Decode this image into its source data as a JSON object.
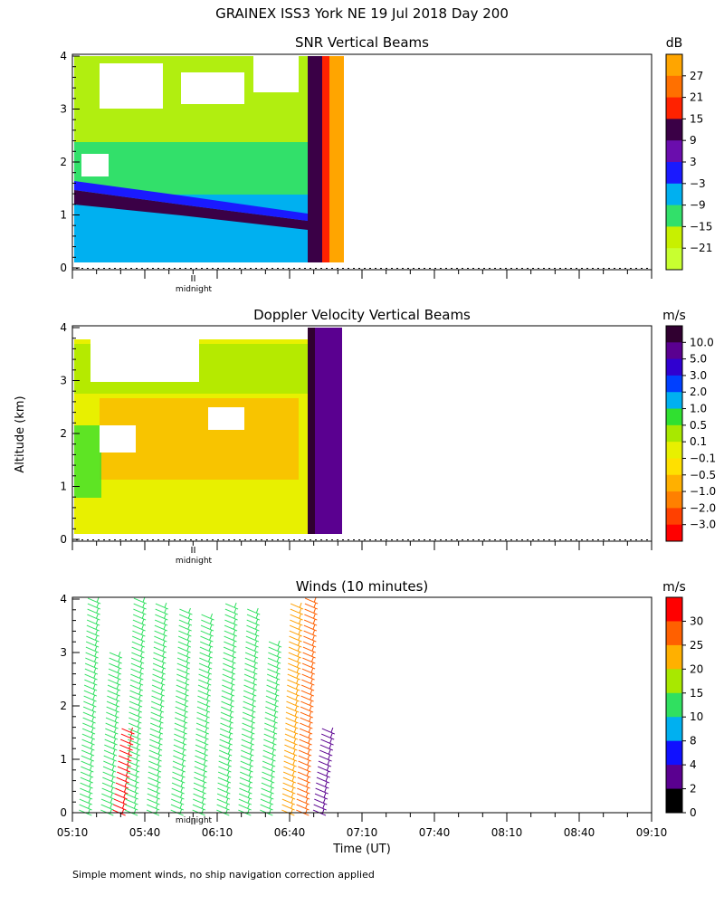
{
  "title": "GRAINEX ISS3 York NE  19 Jul 2018 Day 200",
  "ylabel": "Altitude (km)",
  "xlabel": "Time (UT)",
  "footnote": "Simple moment winds, no ship navigation correction applied",
  "midnight_label": "midnight",
  "chart_data": [
    {
      "type": "heatmap",
      "title": "SNR Vertical Beams",
      "unit": "dB",
      "ylim": [
        0,
        4
      ],
      "yticks": [
        "0",
        "1",
        "2",
        "3",
        "4"
      ],
      "colorbar": {
        "labels": [
          "27",
          "21",
          "15",
          "9",
          "3",
          "−3",
          "−9",
          "−15",
          "−21"
        ],
        "colors": [
          "#ffa500",
          "#ff7000",
          "#ff2200",
          "#3a0046",
          "#6a0dad",
          "#1a1aff",
          "#00b0f0",
          "#32e06a",
          "#c8f000",
          "#c8ff30"
        ]
      }
    },
    {
      "type": "heatmap",
      "title": "Doppler Velocity Vertical Beams",
      "unit": "m/s",
      "ylim": [
        0,
        4
      ],
      "yticks": [
        "0",
        "1",
        "2",
        "3",
        "4"
      ],
      "colorbar": {
        "labels": [
          "10.0",
          "5.0",
          "3.0",
          "2.0",
          "1.0",
          "0.5",
          "0.1",
          "−0.1",
          "−0.5",
          "−1.0",
          "−2.0",
          "−3.0"
        ],
        "colors": [
          "#300030",
          "#5a0090",
          "#3000d0",
          "#0040ff",
          "#00b0f0",
          "#30e030",
          "#a8e800",
          "#e8f000",
          "#ffe000",
          "#ffb000",
          "#ff8000",
          "#ff4000",
          "#ff0000"
        ]
      }
    },
    {
      "type": "scatter",
      "title": "Winds (10 minutes)",
      "unit": "m/s",
      "ylim": [
        0,
        4
      ],
      "yticks": [
        "0",
        "1",
        "2",
        "3",
        "4"
      ],
      "xticks": [
        "05:10",
        "05:40",
        "06:10",
        "06:40",
        "07:10",
        "07:40",
        "08:10",
        "08:40",
        "09:10"
      ],
      "colorbar": {
        "labels": [
          "30",
          "25",
          "20",
          "15",
          "10",
          "8",
          "4",
          "2",
          "0"
        ],
        "colors": [
          "#ff0000",
          "#ff6000",
          "#ffb000",
          "#a8e800",
          "#30e060",
          "#00b0f0",
          "#1010ff",
          "#5a0090",
          "#000000"
        ]
      },
      "barb_columns": [
        {
          "x": "05:15",
          "top": 4.1,
          "color": "#30e060"
        },
        {
          "x": "05:24",
          "top": 3.1,
          "color": "#30e060"
        },
        {
          "x": "05:29",
          "top": 1.6,
          "color": "#ff0000"
        },
        {
          "x": "05:34",
          "top": 4.05,
          "color": "#30e060"
        },
        {
          "x": "05:43",
          "top": 3.95,
          "color": "#30e060"
        },
        {
          "x": "05:53",
          "top": 3.9,
          "color": "#30e060"
        },
        {
          "x": "06:02",
          "top": 3.75,
          "color": "#30e060"
        },
        {
          "x": "06:12",
          "top": 4.0,
          "color": "#30e060"
        },
        {
          "x": "06:21",
          "top": 3.85,
          "color": "#30e060"
        },
        {
          "x": "06:30",
          "top": 3.3,
          "color": "#30e060"
        },
        {
          "x": "06:39",
          "top": 4.0,
          "color": "#ffa000"
        },
        {
          "x": "06:45",
          "top": 4.1,
          "color": "#ff6000"
        },
        {
          "x": "06:52",
          "top": 1.6,
          "color": "#5a0090"
        }
      ]
    }
  ]
}
